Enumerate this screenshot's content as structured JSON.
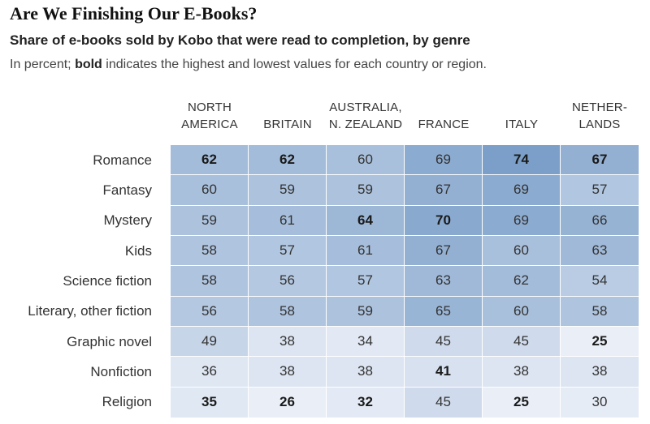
{
  "title": "Are We Finishing Our E-Books?",
  "subtitle": "Share of e-books sold by Kobo that were read to completion, by genre",
  "note_prefix": "In percent;",
  "note_bold": "bold",
  "note_suffix": "indicates the highest and lowest values for each country or region.",
  "chart_data": {
    "type": "heatmap",
    "title": "Are We Finishing Our E-Books?",
    "subtitle": "Share of e-books sold by Kobo that were read to completion, by genre",
    "unit": "percent",
    "columns": [
      {
        "line1": "NORTH",
        "line2": "AMERICA"
      },
      {
        "line1": "",
        "line2": "BRITAIN"
      },
      {
        "line1": "AUSTRALIA,",
        "line2": "N. ZEALAND"
      },
      {
        "line1": "",
        "line2": "FRANCE"
      },
      {
        "line1": "",
        "line2": "ITALY"
      },
      {
        "line1": "NETHER-",
        "line2": "LANDS"
      }
    ],
    "rows": [
      "Romance",
      "Fantasy",
      "Mystery",
      "Kids",
      "Science fiction",
      "Literary, other fiction",
      "Graphic novel",
      "Nonfiction",
      "Religion"
    ],
    "values": [
      [
        62,
        62,
        60,
        69,
        74,
        67
      ],
      [
        60,
        59,
        59,
        67,
        69,
        57
      ],
      [
        59,
        61,
        64,
        70,
        69,
        66
      ],
      [
        58,
        57,
        61,
        67,
        60,
        63
      ],
      [
        58,
        56,
        57,
        63,
        62,
        54
      ],
      [
        56,
        58,
        59,
        65,
        60,
        58
      ],
      [
        49,
        38,
        34,
        45,
        45,
        25
      ],
      [
        36,
        38,
        38,
        41,
        38,
        38
      ],
      [
        35,
        26,
        32,
        45,
        25,
        30
      ]
    ],
    "bold": [
      [
        true,
        true,
        false,
        false,
        true,
        true
      ],
      [
        false,
        false,
        false,
        false,
        false,
        false
      ],
      [
        false,
        false,
        true,
        true,
        false,
        false
      ],
      [
        false,
        false,
        false,
        false,
        false,
        false
      ],
      [
        false,
        false,
        false,
        false,
        false,
        false
      ],
      [
        false,
        false,
        false,
        false,
        false,
        false
      ],
      [
        false,
        false,
        false,
        false,
        false,
        true
      ],
      [
        false,
        false,
        false,
        true,
        false,
        false
      ],
      [
        true,
        true,
        true,
        false,
        true,
        false
      ]
    ],
    "color_scale": {
      "low": "#e9eef7",
      "high": "#7b9fc9"
    }
  }
}
